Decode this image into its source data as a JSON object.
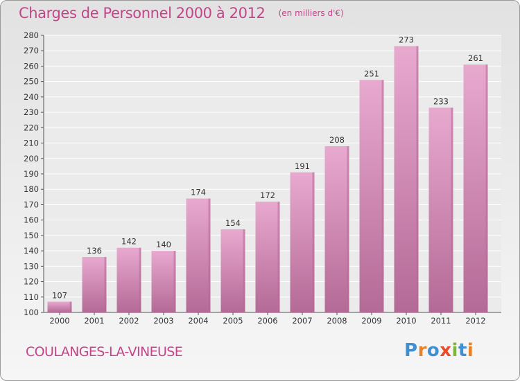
{
  "header": {
    "title": "Charges de Personnel 2000 à 2012",
    "subtitle": "(en milliers d'€)"
  },
  "footer": {
    "commune": "COULANGES-LA-VINEUSE",
    "logo": "Proxiti"
  },
  "colors": {
    "bar_light": "#e8a9cf",
    "bar_dark": "#b46a96",
    "title": "#c4448a",
    "logo_letters": [
      "#3f8fd1",
      "#e8822a",
      "#3f8fd1",
      "#e84a2a",
      "#7ab83a",
      "#3f8fd1",
      "#e8822a"
    ]
  },
  "chart_data": {
    "type": "bar",
    "title": "Charges de Personnel 2000 à 2012",
    "subtitle": "(en milliers d'€)",
    "categories": [
      "2000",
      "2001",
      "2002",
      "2003",
      "2004",
      "2005",
      "2006",
      "2007",
      "2008",
      "2009",
      "2010",
      "2011",
      "2012"
    ],
    "values": [
      107,
      136,
      142,
      140,
      174,
      154,
      172,
      191,
      208,
      251,
      273,
      233,
      261
    ],
    "ylim": [
      100,
      280
    ],
    "yticks": [
      100,
      110,
      120,
      130,
      140,
      150,
      160,
      170,
      180,
      190,
      200,
      210,
      220,
      230,
      240,
      250,
      260,
      270,
      280
    ],
    "grid": true,
    "data_labels": true
  }
}
